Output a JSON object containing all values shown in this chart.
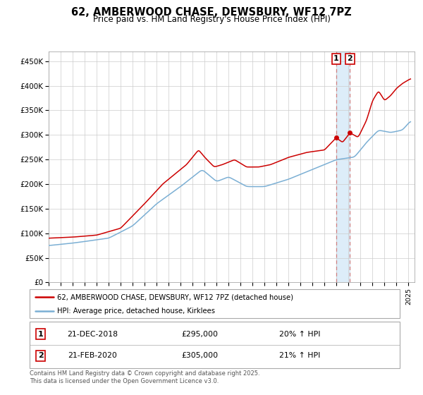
{
  "title": "62, AMBERWOOD CHASE, DEWSBURY, WF12 7PZ",
  "subtitle": "Price paid vs. HM Land Registry's House Price Index (HPI)",
  "ylabel_ticks": [
    "£0",
    "£50K",
    "£100K",
    "£150K",
    "£200K",
    "£250K",
    "£300K",
    "£350K",
    "£400K",
    "£450K"
  ],
  "ytick_vals": [
    0,
    50000,
    100000,
    150000,
    200000,
    250000,
    300000,
    350000,
    400000,
    450000
  ],
  "ylim": [
    0,
    470000
  ],
  "xlim_start": 1995.0,
  "xlim_end": 2025.5,
  "marker1_x": 2018.97,
  "marker1_y": 295000,
  "marker2_x": 2020.12,
  "marker2_y": 305000,
  "vline1_x": 2018.97,
  "vline2_x": 2020.12,
  "shade_color": "#d8eaf8",
  "vline_color": "#d08080",
  "red_line_color": "#cc0000",
  "blue_line_color": "#7bafd4",
  "legend_label_red": "62, AMBERWOOD CHASE, DEWSBURY, WF12 7PZ (detached house)",
  "legend_label_blue": "HPI: Average price, detached house, Kirklees",
  "footer_text": "Contains HM Land Registry data © Crown copyright and database right 2025.\nThis data is licensed under the Open Government Licence v3.0.",
  "table_rows": [
    {
      "num": "1",
      "date": "21-DEC-2018",
      "price": "£295,000",
      "change": "20% ↑ HPI"
    },
    {
      "num": "2",
      "date": "21-FEB-2020",
      "price": "£305,000",
      "change": "21% ↑ HPI"
    }
  ],
  "background_color": "#ffffff",
  "plot_bg_color": "#ffffff",
  "grid_color": "#cccccc",
  "box_edge_color": "#cc0000",
  "legend_border_color": "#aaaaaa",
  "table_border_color": "#aaaaaa"
}
